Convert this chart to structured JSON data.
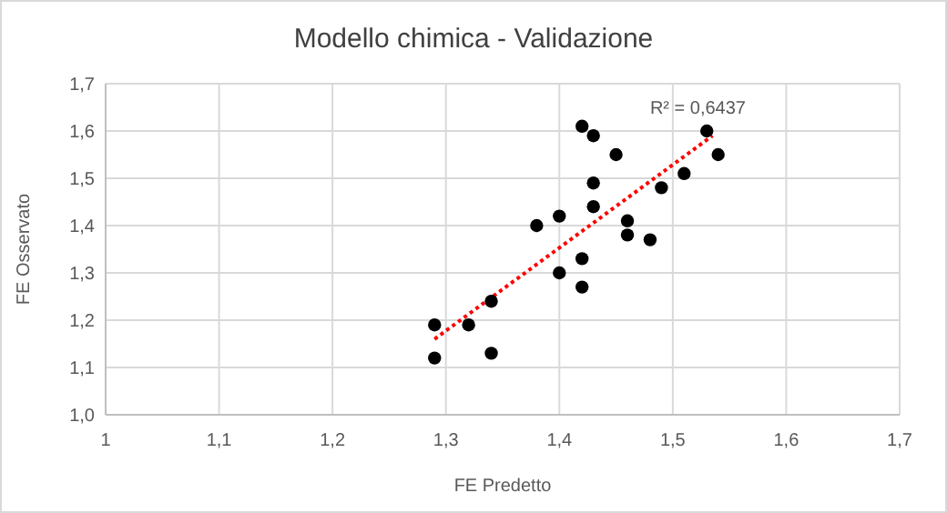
{
  "chart_data": {
    "type": "scatter",
    "title": "Modello chimica - Validazione",
    "xlabel": "FE Predetto",
    "ylabel": "FE Osservato",
    "xlim": [
      1,
      1.7
    ],
    "xticks": [
      {
        "value": 1,
        "label": "1"
      },
      {
        "value": 1.1,
        "label": "1,1"
      },
      {
        "value": 1.2,
        "label": "1,2"
      },
      {
        "value": 1.3,
        "label": "1,3"
      },
      {
        "value": 1.4,
        "label": "1,4"
      },
      {
        "value": 1.5,
        "label": "1,5"
      },
      {
        "value": 1.6,
        "label": "1,6"
      },
      {
        "value": 1.7,
        "label": "1,7"
      }
    ],
    "ylim": [
      1,
      1.7
    ],
    "yticks": [
      {
        "value": 1,
        "label": "1,0"
      },
      {
        "value": 1.1,
        "label": "1,1"
      },
      {
        "value": 1.2,
        "label": "1,2"
      },
      {
        "value": 1.3,
        "label": "1,3"
      },
      {
        "value": 1.4,
        "label": "1,4"
      },
      {
        "value": 1.5,
        "label": "1,5"
      },
      {
        "value": 1.6,
        "label": "1,6"
      },
      {
        "value": 1.7,
        "label": "1,7"
      }
    ],
    "grid": true,
    "marker": "circle",
    "series": [
      {
        "color": "#000000",
        "x": [
          1.42,
          1.43,
          1.45,
          1.43,
          1.51,
          1.53,
          1.54,
          1.49,
          1.43,
          1.4,
          1.38,
          1.46,
          1.46,
          1.48,
          1.42,
          1.4,
          1.42,
          1.29,
          1.29,
          1.32,
          1.34,
          1.34
        ],
        "values": [
          1.61,
          1.59,
          1.55,
          1.49,
          1.51,
          1.6,
          1.55,
          1.48,
          1.44,
          1.42,
          1.4,
          1.41,
          1.38,
          1.37,
          1.33,
          1.3,
          1.27,
          1.19,
          1.12,
          1.19,
          1.24,
          1.13
        ]
      },
      {
        "type": "line",
        "color": "#ff0000",
        "line_style": "dotted",
        "marker": "none",
        "x": [
          1.29,
          1.535
        ],
        "values": [
          1.16,
          1.59
        ]
      }
    ],
    "annotations": [
      {
        "text": "R² = 0,6437",
        "x": 1.535,
        "y": 1.59
      }
    ]
  }
}
